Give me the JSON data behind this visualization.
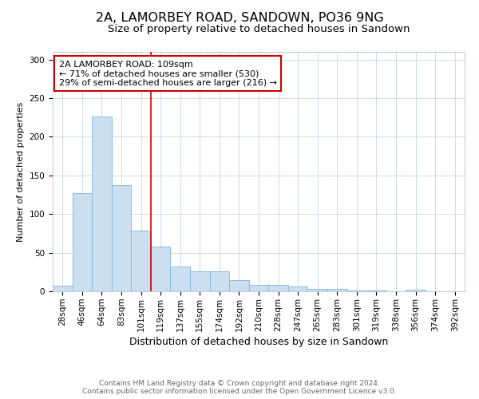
{
  "title1": "2A, LAMORBEY ROAD, SANDOWN, PO36 9NG",
  "title2": "Size of property relative to detached houses in Sandown",
  "xlabel": "Distribution of detached houses by size in Sandown",
  "ylabel": "Number of detached properties",
  "categories": [
    "28sqm",
    "46sqm",
    "64sqm",
    "83sqm",
    "101sqm",
    "119sqm",
    "137sqm",
    "155sqm",
    "174sqm",
    "192sqm",
    "210sqm",
    "228sqm",
    "247sqm",
    "265sqm",
    "283sqm",
    "301sqm",
    "319sqm",
    "338sqm",
    "356sqm",
    "374sqm",
    "392sqm"
  ],
  "values": [
    7,
    127,
    226,
    137,
    79,
    58,
    32,
    26,
    26,
    14,
    8,
    8,
    6,
    3,
    3,
    1,
    1,
    0,
    2,
    0,
    0
  ],
  "bar_color": "#ccdff0",
  "bar_edge_color": "#7ab8d9",
  "bar_edge_width": 0.6,
  "red_line_x": 4.5,
  "red_line_color": "#cc0000",
  "annotation_line1": "2A LAMORBEY ROAD: 109sqm",
  "annotation_line2": "← 71% of detached houses are smaller (530)",
  "annotation_line3": "29% of semi-detached houses are larger (216) →",
  "ylim": [
    0,
    310
  ],
  "yticks": [
    0,
    50,
    100,
    150,
    200,
    250,
    300
  ],
  "footer1": "Contains HM Land Registry data © Crown copyright and database right 2024.",
  "footer2": "Contains public sector information licensed under the Open Government Licence v3.0.",
  "title1_fontsize": 11.5,
  "title2_fontsize": 9.5,
  "xlabel_fontsize": 9,
  "ylabel_fontsize": 8,
  "tick_fontsize": 7.5,
  "annotation_fontsize": 8,
  "footer_fontsize": 6.5,
  "fig_width": 6.0,
  "fig_height": 5.0
}
